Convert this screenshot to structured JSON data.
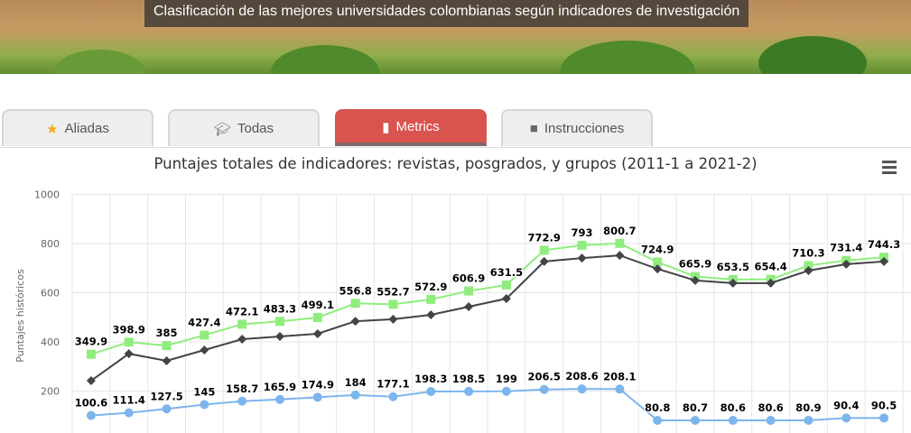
{
  "header": {
    "title": "Clasificación de las mejores universidades colombianas según indicadores de investigación"
  },
  "tabs": [
    {
      "label": "Aliadas",
      "icon": "star-icon",
      "active": false
    },
    {
      "label": "Todas",
      "icon": "graduation-cap-icon",
      "active": false
    },
    {
      "label": "Metrics",
      "icon": "bar-chart-icon",
      "active": true
    },
    {
      "label": "Instrucciones",
      "icon": "video-camera-icon",
      "active": false
    }
  ],
  "colors": {
    "accent": "#d9534f",
    "green": "#90ed7d",
    "black": "#434348",
    "blue": "#7cb5ec"
  },
  "chart_data": {
    "type": "line",
    "title": "Puntajes totales de indicadores: revistas, posgrados, y grupos (2011-1 a 2021-2)",
    "ylabel": "Puntajes históricos",
    "ylim": [
      0,
      1000
    ],
    "yticks": [
      200,
      400,
      600,
      800,
      1000
    ],
    "grid": true,
    "series": [
      {
        "color": "#90ed7d",
        "marker": "square",
        "labels": true,
        "values": [
          349.9,
          398.9,
          385,
          427.4,
          472.1,
          483.3,
          499.1,
          556.8,
          552.7,
          572.9,
          606.9,
          631.5,
          772.9,
          793,
          800.7,
          724.9,
          665.9,
          653.5,
          654.4,
          710.3,
          731.4,
          744.3
        ]
      },
      {
        "color": "#434348",
        "marker": "diamond",
        "labels": false,
        "values": [
          242,
          352,
          323,
          367,
          411,
          422,
          433,
          484,
          492,
          510,
          543,
          576,
          727,
          741,
          752,
          697,
          650,
          639,
          639,
          690,
          716,
          727
        ]
      },
      {
        "color": "#7cb5ec",
        "marker": "circle",
        "labels": true,
        "values": [
          100.6,
          111.4,
          127.5,
          145,
          158.7,
          165.9,
          174.9,
          184,
          177.1,
          198.3,
          198.5,
          199,
          206.5,
          208.6,
          208.1,
          80.8,
          80.7,
          80.6,
          80.6,
          80.9,
          90.4,
          90.5
        ]
      }
    ]
  }
}
